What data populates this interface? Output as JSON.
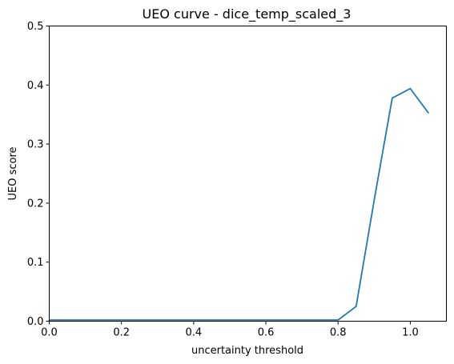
{
  "chart_data": {
    "type": "line",
    "title": "UEO curve - dice_temp_scaled_3",
    "xlabel": "uncertainty threshold",
    "ylabel": "UEO score",
    "xlim": [
      0.0,
      1.1
    ],
    "ylim": [
      0.0,
      0.5
    ],
    "x_ticks": [
      0.0,
      0.2,
      0.4,
      0.6,
      0.8,
      1.0
    ],
    "x_tick_labels": [
      "0.0",
      "0.2",
      "0.4",
      "0.6",
      "0.8",
      "1.0"
    ],
    "y_ticks": [
      0.0,
      0.1,
      0.2,
      0.3,
      0.4,
      0.5
    ],
    "y_tick_labels": [
      "0.0",
      "0.1",
      "0.2",
      "0.3",
      "0.4",
      "0.5"
    ],
    "grid": false,
    "series": [
      {
        "color": "#1f77b4",
        "x": [
          0.0,
          0.05,
          0.1,
          0.15,
          0.2,
          0.25,
          0.3,
          0.35,
          0.4,
          0.45,
          0.5,
          0.55,
          0.6,
          0.65,
          0.7,
          0.75,
          0.8,
          0.85,
          0.9,
          0.95,
          1.0,
          1.05
        ],
        "y": [
          0.002,
          0.002,
          0.002,
          0.002,
          0.002,
          0.002,
          0.002,
          0.002,
          0.002,
          0.002,
          0.002,
          0.002,
          0.002,
          0.002,
          0.002,
          0.002,
          0.002,
          0.025,
          0.205,
          0.378,
          0.394,
          0.353
        ]
      }
    ]
  }
}
